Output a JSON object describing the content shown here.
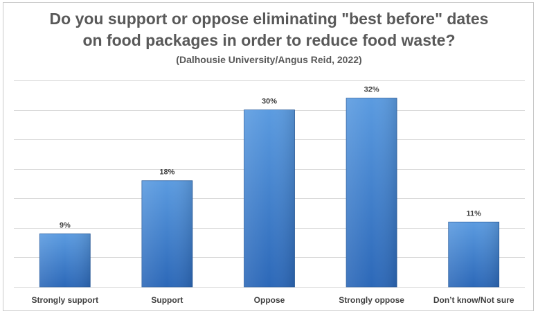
{
  "chart_data": {
    "type": "bar",
    "title": "Do you support or oppose eliminating \"best before\" dates",
    "title_line2": "on food packages in order to reduce food waste?",
    "subtitle": "(Dalhousie University/Angus Reid, 2022)",
    "categories": [
      "Strongly support",
      "Support",
      "Oppose",
      "Strongly oppose",
      "Don’t know/Not sure"
    ],
    "values": [
      9,
      18,
      30,
      32,
      11
    ],
    "data_labels": [
      "9%",
      "18%",
      "30%",
      "32%",
      "11%"
    ],
    "ylim": [
      0,
      35
    ],
    "grid": true,
    "legend": "none",
    "xlabel": "",
    "ylabel": "",
    "colors": {
      "bar_top": "#5b9be0",
      "bar_bottom": "#2c68b8",
      "gridline": "#d9d9d9",
      "text": "#404040",
      "title": "#595959"
    }
  }
}
